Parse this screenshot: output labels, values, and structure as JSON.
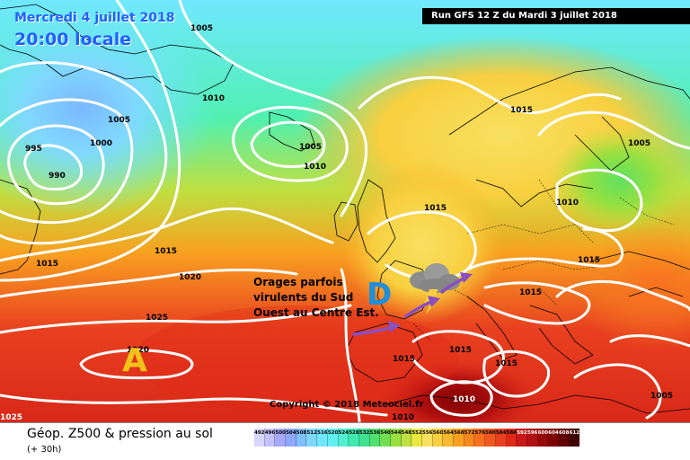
{
  "header": {
    "date_line": "Mercredi 4 juillet 2018",
    "time_line": "20:00 locale",
    "run_line": "Run GFS 12 Z du Mardi 3 juillet 2018"
  },
  "map": {
    "pressure_labels": [
      "1005",
      "1010",
      "1005",
      "1000",
      "995",
      "990",
      "1005",
      "1010",
      "1015",
      "1015",
      "1005",
      "1010",
      "1015",
      "1015",
      "1020",
      "1025",
      "1020",
      "1015",
      "1015",
      "1015",
      "1015",
      "1015",
      "1010",
      "1005",
      "1010",
      "1025"
    ],
    "annotation": {
      "lines": [
        "Orages parfois",
        "virulents du Sud",
        "Ouest au Centre Est."
      ],
      "color": "#000000"
    },
    "low_marker": {
      "letter": "D",
      "color": "#1e8fd8"
    },
    "high_marker": {
      "letter": "A",
      "color": "#f2c21a"
    },
    "arrow_color": "#8a4fc0",
    "copyright": "Copyright © 2018 Meteociel.fr",
    "icons": [
      "storm-cloud-icon",
      "trajectory-arrow-icon"
    ]
  },
  "legend": {
    "title": "Géop. Z500 & pression au sol",
    "subtitle": "(+ 30h)",
    "scale": [
      {
        "label": "492",
        "color": "#d6d6ff"
      },
      {
        "label": "496",
        "color": "#c2c2ff"
      },
      {
        "label": "500",
        "color": "#a8a8ff"
      },
      {
        "label": "504",
        "color": "#8fa8ff"
      },
      {
        "label": "508",
        "color": "#80c0ff"
      },
      {
        "label": "512",
        "color": "#80d8ff"
      },
      {
        "label": "516",
        "color": "#70e8ff"
      },
      {
        "label": "520",
        "color": "#60f0f0"
      },
      {
        "label": "524",
        "color": "#50f0d0"
      },
      {
        "label": "528",
        "color": "#40e8b0"
      },
      {
        "label": "532",
        "color": "#40e090"
      },
      {
        "label": "536",
        "color": "#50e070"
      },
      {
        "label": "540",
        "color": "#70e050"
      },
      {
        "label": "544",
        "color": "#98e040"
      },
      {
        "label": "548",
        "color": "#c0e040"
      },
      {
        "label": "552",
        "color": "#e8e840"
      },
      {
        "label": "556",
        "color": "#f8e060"
      },
      {
        "label": "560",
        "color": "#f8d040"
      },
      {
        "label": "564",
        "color": "#f8b830"
      },
      {
        "label": "568",
        "color": "#f8a020"
      },
      {
        "label": "572",
        "color": "#f88820"
      },
      {
        "label": "576",
        "color": "#f87020"
      },
      {
        "label": "580",
        "color": "#f05820"
      },
      {
        "label": "584",
        "color": "#e84020"
      },
      {
        "label": "588",
        "color": "#e02818"
      },
      {
        "label": "592",
        "color": "#c81818"
      },
      {
        "label": "596",
        "color": "#b01010"
      },
      {
        "label": "600",
        "color": "#980808"
      },
      {
        "label": "604",
        "color": "#800000"
      },
      {
        "label": "608",
        "color": "#600000"
      },
      {
        "label": "612",
        "color": "#400000"
      }
    ]
  }
}
